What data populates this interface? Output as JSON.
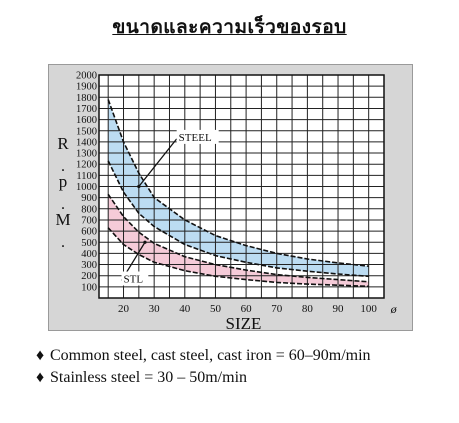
{
  "header": {
    "title": "ขนาดและความเร็วของรอบ"
  },
  "chart_data": {
    "type": "line",
    "xlabel": "SIZE",
    "ylabel": "R.p.M.",
    "x_ticks": [
      20,
      30,
      40,
      50,
      60,
      70,
      80,
      90,
      100
    ],
    "x_end_label": "ø",
    "y_ticks": [
      100,
      200,
      300,
      400,
      500,
      600,
      700,
      800,
      900,
      1000,
      1100,
      1200,
      1300,
      1400,
      1500,
      1600,
      1700,
      1800,
      1900,
      2000
    ],
    "xlim": [
      12,
      105
    ],
    "ylim": [
      0,
      2000
    ],
    "grid": true,
    "bands": [
      {
        "name": "STEEL",
        "color": "#bcdcf2",
        "upper": {
          "x": [
            15,
            20,
            25,
            30,
            40,
            50,
            60,
            70,
            80,
            90,
            100
          ],
          "y": [
            1780,
            1400,
            1120,
            900,
            700,
            560,
            470,
            400,
            350,
            315,
            285
          ]
        },
        "lower": {
          "x": [
            15,
            20,
            25,
            30,
            40,
            50,
            60,
            70,
            80,
            90,
            100
          ],
          "y": [
            1230,
            950,
            760,
            640,
            480,
            380,
            320,
            270,
            240,
            215,
            195
          ]
        }
      },
      {
        "name": "STL",
        "color": "#f5cbd8",
        "upper": {
          "x": [
            15,
            20,
            25,
            30,
            40,
            50,
            60,
            70,
            80,
            90,
            100
          ],
          "y": [
            930,
            730,
            590,
            490,
            370,
            300,
            250,
            210,
            185,
            165,
            145
          ]
        },
        "lower": {
          "x": [
            15,
            20,
            25,
            30,
            40,
            50,
            60,
            70,
            80,
            90,
            100
          ],
          "y": [
            630,
            480,
            390,
            320,
            245,
            195,
            165,
            140,
            125,
            115,
            105
          ]
        }
      }
    ],
    "labels": [
      {
        "text": "STEEL",
        "x": 38,
        "y": 1400,
        "arrow_to": [
          25,
          1000
        ]
      },
      {
        "text": "STL",
        "x": 20,
        "y": 130,
        "arrow_to": [
          27,
          500
        ]
      }
    ]
  },
  "notes": [
    {
      "bullet": "♦",
      "text": "Common steel, cast steel, cast iron = 60–90m/min"
    },
    {
      "bullet": "♦",
      "text": "Stainless steel = 30 – 50m/min"
    }
  ]
}
